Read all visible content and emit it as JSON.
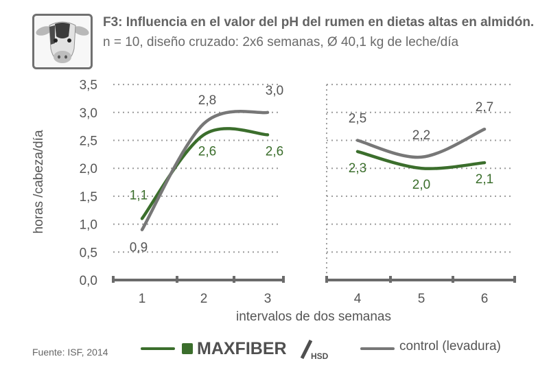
{
  "header": {
    "title_bold": "F3: Influencia en el valor del pH del rumen en dietas altas en almidón.",
    "title_rest": " n = 10, diseño cruzado: 2x6 semanas, Ø 40,1 kg de leche/día"
  },
  "icon": "cow-head-icon",
  "source": "Fuente: ISF, 2014",
  "legend": {
    "maxfiber_main": "MAXFIBER",
    "maxfiber_sub": "HSD",
    "control_label": "control (levadura)"
  },
  "colors": {
    "maxfiber": "#3b6e2c",
    "control": "#777777",
    "axis": "#6b6b6b",
    "grid": "#9a9a9a"
  },
  "chart_data": {
    "type": "line",
    "ylabel": "horas /cabeza/día",
    "xlabel": "intervalos de dos semanas",
    "ylim": [
      0,
      3.5
    ],
    "yticks": [
      "0,0",
      "0,5",
      "1,0",
      "1,5",
      "2,0",
      "2,5",
      "3,0",
      "3,5"
    ],
    "xticks": [
      "1",
      "2",
      "3",
      "4",
      "5",
      "6"
    ],
    "grid": "dotted horizontal",
    "panels": [
      {
        "x": [
          1,
          2,
          3
        ],
        "series": [
          {
            "key": "maxfiber",
            "values": [
              1.1,
              2.6,
              2.6
            ],
            "labels": [
              "1,1",
              "2,6",
              "2,6"
            ]
          },
          {
            "key": "control",
            "values": [
              0.9,
              2.8,
              3.0
            ],
            "labels": [
              "0,9",
              "2,8",
              "3,0"
            ]
          }
        ]
      },
      {
        "x": [
          4,
          5,
          6
        ],
        "series": [
          {
            "key": "maxfiber",
            "values": [
              2.3,
              2.0,
              2.1
            ],
            "labels": [
              "2,3",
              "2,0",
              "2,1"
            ]
          },
          {
            "key": "control",
            "values": [
              2.5,
              2.2,
              2.7
            ],
            "labels": [
              "2,5",
              "2,2",
              "2,7"
            ]
          }
        ]
      }
    ]
  }
}
